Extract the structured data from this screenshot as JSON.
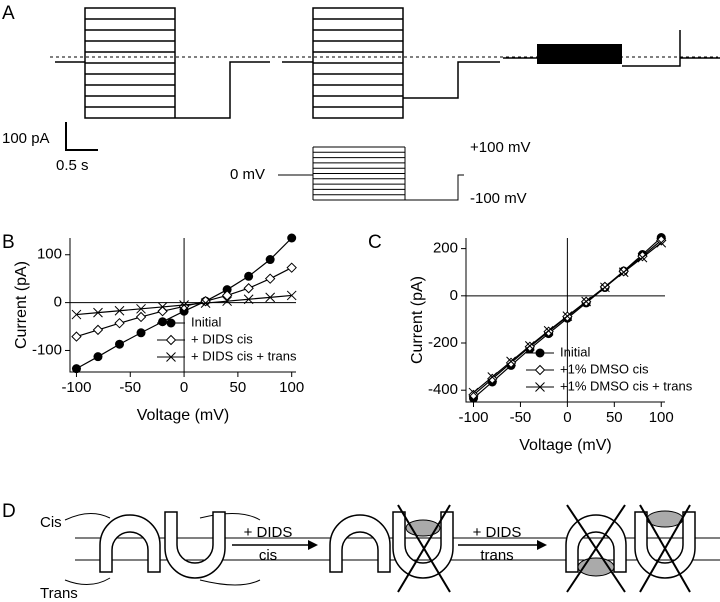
{
  "panel_a": {
    "label": "A",
    "scale_current": "100 pA",
    "scale_time": "0.5 s",
    "holding": "0 mV",
    "step_max": "+100 mV",
    "step_min": "-100 mV"
  },
  "chart_data": [
    {
      "type": "line",
      "panel_label": "B",
      "xlabel": "Voltage (mV)",
      "ylabel": "Current (pA)",
      "x": [
        -100,
        -80,
        -60,
        -40,
        -20,
        0,
        20,
        40,
        60,
        80,
        100
      ],
      "xlim": [
        -106,
        104
      ],
      "xticks": [
        -100,
        -50,
        0,
        50,
        100
      ],
      "ylim": [
        -145,
        135
      ],
      "yticks": [
        -100,
        0,
        100
      ],
      "zero_lines": true,
      "legend": "lower right",
      "series": [
        {
          "name": "Initial",
          "color": "#000000",
          "marker": "circle",
          "values": [
            -138,
            -113,
            -87,
            -63,
            -40,
            -18,
            3,
            27,
            55,
            90,
            135
          ]
        },
        {
          "name": "+ DIDS cis",
          "color": "#000000",
          "marker": "diamond",
          "values": [
            -71,
            -57,
            -43,
            -30,
            -18,
            -8,
            3,
            15,
            30,
            50,
            73
          ]
        },
        {
          "name": "+ DIDS cis + trans",
          "color": "#000000",
          "marker": "x",
          "values": [
            -25,
            -21,
            -17,
            -13,
            -9,
            -5,
            -1,
            3,
            7,
            11,
            15
          ]
        }
      ]
    },
    {
      "type": "line",
      "panel_label": "C",
      "xlabel": "Voltage (mV)",
      "ylabel": "Current (pA)",
      "x": [
        -100,
        -80,
        -60,
        -40,
        -20,
        0,
        20,
        40,
        60,
        80,
        100
      ],
      "xlim": [
        -108,
        104
      ],
      "xticks": [
        -100,
        -50,
        0,
        50,
        100
      ],
      "ylim": [
        -450,
        245
      ],
      "yticks": [
        -400,
        -200,
        0,
        200
      ],
      "zero_lines": true,
      "legend": "lower right",
      "series": [
        {
          "name": "Initial",
          "color": "#000000",
          "marker": "circle",
          "values": [
            -434,
            -365,
            -295,
            -225,
            -160,
            -95,
            -30,
            35,
            105,
            175,
            247
          ]
        },
        {
          "name": "+1% DMSO cis",
          "color": "#000000",
          "marker": "diamond",
          "values": [
            -420,
            -352,
            -284,
            -216,
            -152,
            -88,
            -25,
            38,
            104,
            168,
            235
          ]
        },
        {
          "name": "+1% DMSO cis + trans",
          "color": "#000000",
          "marker": "x",
          "values": [
            -410,
            -344,
            -278,
            -212,
            -148,
            -86,
            -24,
            36,
            100,
            162,
            225
          ]
        }
      ]
    }
  ],
  "panel_d": {
    "label": "D",
    "cis": "Cis",
    "trans": "Trans",
    "step1": [
      "+ DIDS",
      "cis"
    ],
    "step2": [
      "+ DIDS",
      "trans"
    ]
  }
}
